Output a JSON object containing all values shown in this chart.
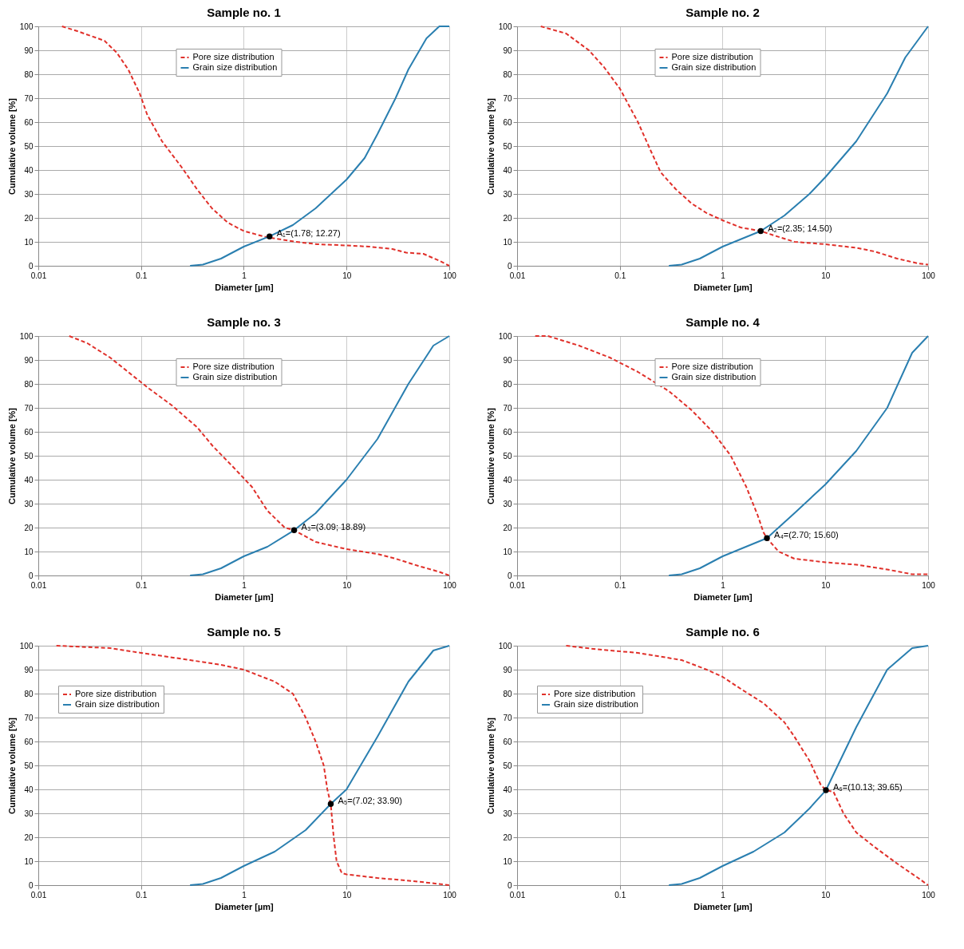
{
  "chart_data": [
    {
      "type": "line",
      "title": "Sample no. 1",
      "xlabel": "Diameter [µm]",
      "ylabel": "Cumulative volume [%]",
      "log": "x",
      "grid": true,
      "legend": "top",
      "xlim": [
        0.01,
        100
      ],
      "xticks": [
        0.01,
        0.1,
        1,
        10,
        100
      ],
      "ylim": [
        0,
        100
      ],
      "yticks": [
        0,
        10,
        20,
        30,
        40,
        50,
        60,
        70,
        80,
        90,
        100
      ],
      "series": [
        {
          "name": "Pore size distribution",
          "color": "#e0302a",
          "line_style": "dashed",
          "x": [
            0.017,
            0.024,
            0.044,
            0.058,
            0.075,
            0.097,
            0.115,
            0.16,
            0.25,
            0.35,
            0.49,
            0.7,
            1,
            1.65,
            3.2,
            5.2,
            10,
            16.7,
            28,
            38,
            56,
            81,
            100
          ],
          "values": [
            100,
            98,
            94,
            89,
            82,
            72,
            63,
            52,
            41,
            32,
            24,
            18,
            14.5,
            12,
            10,
            9,
            8.5,
            8,
            7,
            5.5,
            5,
            2,
            0
          ]
        },
        {
          "name": "Grain size distribution",
          "color": "#2a7fb0",
          "line_style": "solid",
          "x": [
            0.3,
            0.4,
            0.6,
            1,
            1.78,
            3,
            5,
            10,
            15,
            20,
            30,
            40,
            60,
            80,
            100
          ],
          "values": [
            0,
            0.5,
            3,
            8,
            12.27,
            17,
            24,
            36,
            45,
            55,
            70,
            82,
            95,
            100,
            100
          ]
        }
      ],
      "annotations": [
        {
          "text": "A₁=(1.78; 12.27)",
          "x": 1.78,
          "y": 12.27
        }
      ]
    },
    {
      "type": "line",
      "title": "Sample no. 2",
      "xlabel": "Diameter [µm]",
      "ylabel": "Cumulative volume [%]",
      "log": "x",
      "grid": true,
      "legend": "top",
      "xlim": [
        0.01,
        100
      ],
      "xticks": [
        0.01,
        0.1,
        1,
        10,
        100
      ],
      "ylim": [
        0,
        100
      ],
      "yticks": [
        0,
        10,
        20,
        30,
        40,
        50,
        60,
        70,
        80,
        90,
        100
      ],
      "series": [
        {
          "name": "Pore size distribution",
          "color": "#e0302a",
          "line_style": "dashed",
          "x": [
            0.017,
            0.03,
            0.05,
            0.07,
            0.1,
            0.15,
            0.2,
            0.25,
            0.35,
            0.5,
            0.7,
            1,
            1.5,
            2.35,
            3,
            5,
            10,
            20,
            30,
            50,
            80,
            100
          ],
          "values": [
            100,
            97,
            90,
            83,
            74,
            60,
            48,
            39,
            32,
            26,
            22,
            19,
            16,
            14.5,
            13,
            10,
            9,
            7.5,
            6,
            3,
            1,
            0.5
          ]
        },
        {
          "name": "Grain size distribution",
          "color": "#2a7fb0",
          "line_style": "solid",
          "x": [
            0.3,
            0.4,
            0.6,
            1,
            2.35,
            4,
            7,
            10,
            20,
            40,
            60,
            100
          ],
          "values": [
            0,
            0.5,
            3,
            8,
            14.5,
            21,
            30,
            37,
            52,
            72,
            87,
            100
          ]
        }
      ],
      "annotations": [
        {
          "text": "A₂=(2.35; 14.50)",
          "x": 2.35,
          "y": 14.5
        }
      ]
    },
    {
      "type": "line",
      "title": "Sample no. 3",
      "xlabel": "Diameter [µm]",
      "ylabel": "Cumulative volume [%]",
      "log": "x",
      "grid": true,
      "legend": "top",
      "xlim": [
        0.01,
        100
      ],
      "xticks": [
        0.01,
        0.1,
        1,
        10,
        100
      ],
      "ylim": [
        0,
        100
      ],
      "yticks": [
        0,
        10,
        20,
        30,
        40,
        50,
        60,
        70,
        80,
        90,
        100
      ],
      "series": [
        {
          "name": "Pore size distribution",
          "color": "#e0302a",
          "line_style": "dashed",
          "x": [
            0.02,
            0.03,
            0.05,
            0.08,
            0.12,
            0.2,
            0.35,
            0.5,
            0.8,
            1.2,
            1.7,
            2.5,
            3.09,
            5,
            10,
            20,
            30,
            50,
            80,
            100
          ],
          "values": [
            100,
            97,
            91,
            84,
            78,
            71,
            62,
            54,
            45,
            37,
            27,
            20,
            18.89,
            14,
            11,
            9,
            7,
            4,
            1.5,
            0
          ]
        },
        {
          "name": "Grain size distribution",
          "color": "#2a7fb0",
          "line_style": "solid",
          "x": [
            0.3,
            0.4,
            0.6,
            1,
            1.7,
            3.09,
            5,
            10,
            20,
            40,
            70,
            100
          ],
          "values": [
            0,
            0.5,
            3,
            8,
            12,
            18.89,
            26,
            40,
            57,
            80,
            96,
            100
          ]
        }
      ],
      "annotations": [
        {
          "text": "A₃=(3.09; 18.89)",
          "x": 3.09,
          "y": 18.89
        }
      ]
    },
    {
      "type": "line",
      "title": "Sample no. 4",
      "xlabel": "Diameter [µm]",
      "ylabel": "Cumulative volume [%]",
      "log": "x",
      "grid": true,
      "legend": "top",
      "xlim": [
        0.01,
        100
      ],
      "xticks": [
        0.01,
        0.1,
        1,
        10,
        100
      ],
      "ylim": [
        0,
        100
      ],
      "yticks": [
        0,
        10,
        20,
        30,
        40,
        50,
        60,
        70,
        80,
        90,
        100
      ],
      "series": [
        {
          "name": "Pore size distribution",
          "color": "#e0302a",
          "line_style": "dashed",
          "x": [
            0.015,
            0.02,
            0.04,
            0.08,
            0.15,
            0.3,
            0.5,
            0.8,
            1.2,
            1.7,
            2.2,
            2.5,
            2.7,
            3.5,
            5,
            10,
            20,
            40,
            70,
            100
          ],
          "values": [
            100,
            100,
            96,
            91,
            85,
            77,
            69,
            60,
            50,
            37,
            25,
            18,
            15.6,
            10,
            7,
            5.5,
            4.5,
            2.5,
            0.5,
            0.5
          ]
        },
        {
          "name": "Grain size distribution",
          "color": "#2a7fb0",
          "line_style": "solid",
          "x": [
            0.3,
            0.4,
            0.6,
            1,
            2.7,
            5,
            10,
            20,
            40,
            70,
            100
          ],
          "values": [
            0,
            0.5,
            3,
            8,
            15.6,
            26,
            38,
            52,
            70,
            93,
            100
          ]
        }
      ],
      "annotations": [
        {
          "text": "A₄=(2.70; 15.60)",
          "x": 2.7,
          "y": 15.6
        }
      ]
    },
    {
      "type": "line",
      "title": "Sample no. 5",
      "xlabel": "Diameter [µm]",
      "ylabel": "Cumulative volume [%]",
      "log": "x",
      "grid": true,
      "legend": "top left",
      "xlim": [
        0.01,
        100
      ],
      "xticks": [
        0.01,
        0.1,
        1,
        10,
        100
      ],
      "ylim": [
        0,
        100
      ],
      "yticks": [
        0,
        10,
        20,
        30,
        40,
        50,
        60,
        70,
        80,
        90,
        100
      ],
      "series": [
        {
          "name": "Pore size distribution",
          "color": "#e0302a",
          "line_style": "dashed",
          "x": [
            0.015,
            0.05,
            0.1,
            0.3,
            0.6,
            1,
            2,
            3,
            4,
            5,
            6,
            6.5,
            7.02,
            7.5,
            8,
            9,
            10,
            20,
            50,
            100
          ],
          "values": [
            100,
            99,
            97,
            94,
            92,
            90,
            85,
            80,
            70,
            60,
            50,
            40,
            33.9,
            20,
            10,
            5,
            4.5,
            3,
            1.5,
            0
          ]
        },
        {
          "name": "Grain size distribution",
          "color": "#2a7fb0",
          "line_style": "solid",
          "x": [
            0.3,
            0.4,
            0.6,
            1,
            2,
            4,
            7.02,
            10,
            20,
            40,
            70,
            100
          ],
          "values": [
            0,
            0.5,
            3,
            8,
            14,
            23,
            33.9,
            40,
            62,
            85,
            98,
            100
          ]
        }
      ],
      "annotations": [
        {
          "text": "A₅=(7.02; 33.90)",
          "x": 7.02,
          "y": 33.9
        }
      ]
    },
    {
      "type": "line",
      "title": "Sample no. 6",
      "xlabel": "Diameter [µm]",
      "ylabel": "Cumulative volume [%]",
      "log": "x",
      "grid": true,
      "legend": "top left",
      "xlim": [
        0.01,
        100
      ],
      "xticks": [
        0.01,
        0.1,
        1,
        10,
        100
      ],
      "ylim": [
        0,
        100
      ],
      "yticks": [
        0,
        10,
        20,
        30,
        40,
        50,
        60,
        70,
        80,
        90,
        100
      ],
      "series": [
        {
          "name": "Pore size distribution",
          "color": "#e0302a",
          "line_style": "dashed",
          "x": [
            0.03,
            0.06,
            0.15,
            0.4,
            0.7,
            1,
            1.5,
            2.5,
            4,
            5,
            7,
            9,
            10.13,
            12,
            15,
            20,
            30,
            50,
            80,
            100
          ],
          "values": [
            100,
            98.5,
            97,
            94,
            90,
            87,
            82,
            76,
            68,
            62,
            52,
            42,
            39.65,
            39,
            30,
            22,
            16,
            9,
            3,
            0
          ]
        },
        {
          "name": "Grain size distribution",
          "color": "#2a7fb0",
          "line_style": "solid",
          "x": [
            0.3,
            0.4,
            0.6,
            1,
            2,
            4,
            7,
            10.13,
            20,
            40,
            70,
            100
          ],
          "values": [
            0,
            0.5,
            3,
            8,
            14,
            22,
            32,
            39.65,
            66,
            90,
            99,
            100
          ]
        }
      ],
      "annotations": [
        {
          "text": "A₆=(10.13; 39.65)",
          "x": 10.13,
          "y": 39.65
        }
      ]
    }
  ]
}
